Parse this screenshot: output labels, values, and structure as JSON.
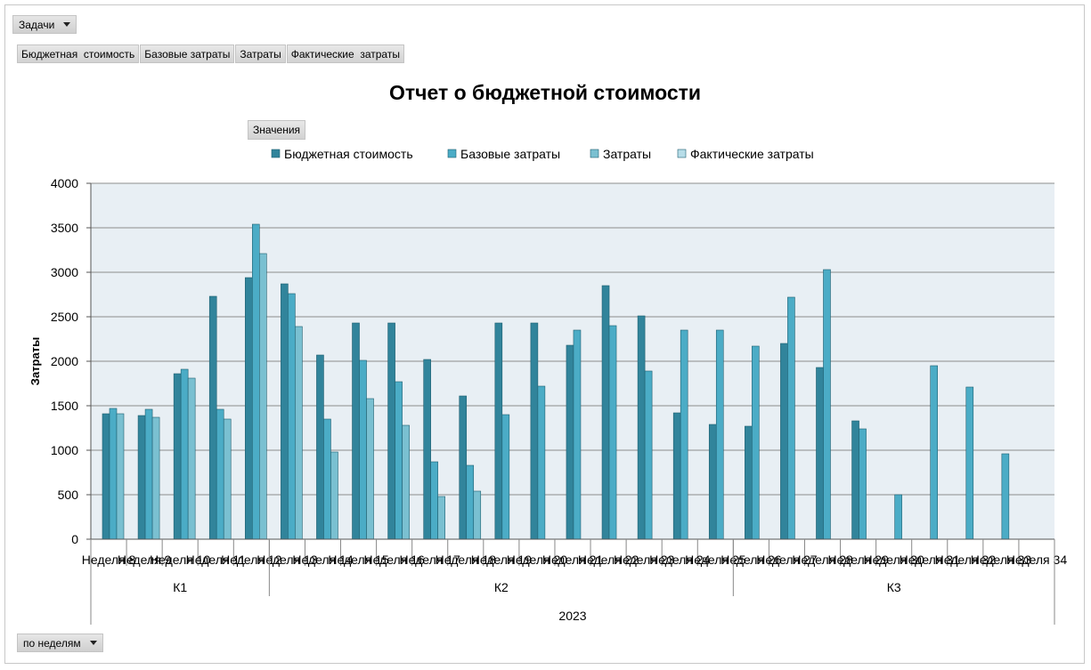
{
  "filter_dropdown": {
    "label": "Задачи"
  },
  "field_buttons": [
    "Бюджетная  стоимость",
    "Базовые затраты",
    "Затраты",
    "Фактические  затраты"
  ],
  "values_button": {
    "label": "Значения"
  },
  "bottom_dropdown": {
    "label": "по неделям"
  },
  "colors": {
    "series": [
      "#31849b",
      "#4bacc6",
      "#7ac0d1",
      "#b7dde8"
    ],
    "plot_bg": "#e8eff4",
    "grid": "#8c8c8c"
  },
  "chart_data": {
    "type": "bar",
    "title": "Отчет о бюджетной стоимости",
    "ylabel": "Затраты",
    "xlabel": "",
    "ylim": [
      0,
      4000
    ],
    "yticks": [
      0,
      500,
      1000,
      1500,
      2000,
      2500,
      3000,
      3500,
      4000
    ],
    "grid": true,
    "legend_position": "top",
    "categories": [
      "Неделя 8",
      "Неделя 9",
      "Неделя 10",
      "Неделя 11",
      "Неделя 12",
      "Неделя 13",
      "Неделя 14",
      "Неделя 15",
      "Неделя 16",
      "Неделя 17",
      "Неделя 18",
      "Неделя 19",
      "Неделя 20",
      "Неделя 21",
      "Неделя 22",
      "Неделя 23",
      "Неделя 24",
      "Неделя 25",
      "Неделя 26",
      "Неделя 27",
      "Неделя 28",
      "Неделя 29",
      "Неделя 30",
      "Неделя 31",
      "Неделя 32",
      "Неделя 33",
      "Неделя 34"
    ],
    "quarters": [
      {
        "label": "К1",
        "start": 0,
        "count": 5
      },
      {
        "label": "К2",
        "start": 5,
        "count": 13
      },
      {
        "label": "К3",
        "start": 18,
        "count": 9
      }
    ],
    "year": "2023",
    "series": [
      {
        "name": "Бюджетная стоимость",
        "values": [
          1410,
          1390,
          1860,
          2730,
          2940,
          2870,
          2070,
          2430,
          2430,
          2020,
          1610,
          2430,
          2430,
          2180,
          2850,
          2510,
          1420,
          1290,
          1270,
          2200,
          1930,
          1330,
          null,
          null,
          null,
          null,
          null
        ]
      },
      {
        "name": "Базовые затраты",
        "values": [
          1470,
          1460,
          1910,
          1460,
          3540,
          2760,
          1350,
          2010,
          1770,
          870,
          830,
          1400,
          1720,
          2350,
          2400,
          1890,
          2350,
          2350,
          2170,
          2720,
          3030,
          1240,
          500,
          1950,
          1710,
          960,
          null
        ]
      },
      {
        "name": "Затраты",
        "values": [
          1410,
          1370,
          1810,
          1350,
          3210,
          2390,
          980,
          1580,
          1280,
          480,
          540,
          null,
          null,
          null,
          null,
          null,
          null,
          null,
          null,
          null,
          null,
          null,
          null,
          null,
          null,
          null,
          null
        ]
      },
      {
        "name": "Фактические затраты",
        "values": [
          null,
          null,
          null,
          null,
          null,
          null,
          null,
          null,
          null,
          null,
          null,
          null,
          null,
          null,
          null,
          null,
          null,
          null,
          null,
          null,
          null,
          null,
          null,
          null,
          null,
          null,
          null
        ]
      }
    ]
  }
}
